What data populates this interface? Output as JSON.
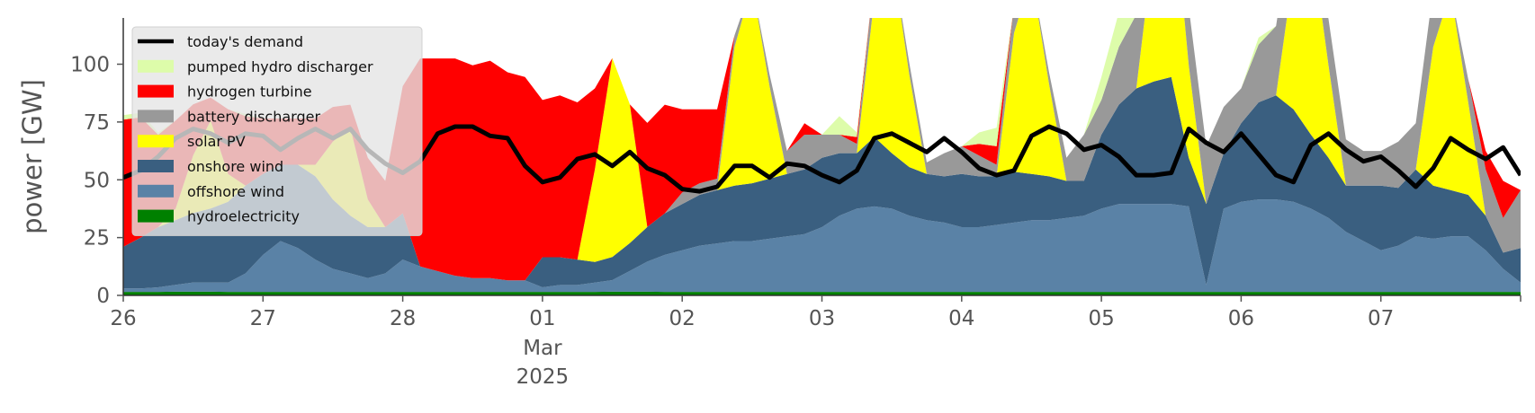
{
  "chart_data": {
    "type": "area",
    "ylabel": "power [GW]",
    "ylim": [
      0,
      120
    ],
    "yticks": [
      0,
      25,
      50,
      75,
      100
    ],
    "xlim": [
      "2025-02-26T00:00",
      "2025-03-08T00:00"
    ],
    "xticks": [
      {
        "x": "2025-02-26",
        "label": "26"
      },
      {
        "x": "2025-02-27",
        "label": "27"
      },
      {
        "x": "2025-02-28",
        "label": "28"
      },
      {
        "x": "2025-03-01",
        "label": "01",
        "sub": [
          "Mar",
          "2025"
        ]
      },
      {
        "x": "2025-03-02",
        "label": "02"
      },
      {
        "x": "2025-03-03",
        "label": "03"
      },
      {
        "x": "2025-03-04",
        "label": "04"
      },
      {
        "x": "2025-03-05",
        "label": "05"
      },
      {
        "x": "2025-03-06",
        "label": "06"
      },
      {
        "x": "2025-03-07",
        "label": "07"
      },
      {
        "x": "2025-03-08",
        "label": ""
      }
    ],
    "legend_position": "top-left",
    "grid": false,
    "x": [
      "2025-02-26T00:00",
      "2025-02-26T03:00",
      "2025-02-26T06:00",
      "2025-02-26T09:00",
      "2025-02-26T12:00",
      "2025-02-26T15:00",
      "2025-02-26T18:00",
      "2025-02-26T21:00",
      "2025-02-27T00:00",
      "2025-02-27T03:00",
      "2025-02-27T06:00",
      "2025-02-27T09:00",
      "2025-02-27T12:00",
      "2025-02-27T15:00",
      "2025-02-27T18:00",
      "2025-02-27T21:00",
      "2025-02-28T00:00",
      "2025-02-28T03:00",
      "2025-02-28T06:00",
      "2025-02-28T09:00",
      "2025-02-28T12:00",
      "2025-02-28T15:00",
      "2025-02-28T18:00",
      "2025-02-28T21:00",
      "2025-03-01T00:00",
      "2025-03-01T03:00",
      "2025-03-01T06:00",
      "2025-03-01T09:00",
      "2025-03-01T12:00",
      "2025-03-01T15:00",
      "2025-03-01T18:00",
      "2025-03-01T21:00",
      "2025-03-02T00:00",
      "2025-03-02T03:00",
      "2025-03-02T06:00",
      "2025-03-02T09:00",
      "2025-03-02T12:00",
      "2025-03-02T15:00",
      "2025-03-02T18:00",
      "2025-03-02T21:00",
      "2025-03-03T00:00",
      "2025-03-03T03:00",
      "2025-03-03T06:00",
      "2025-03-03T09:00",
      "2025-03-03T12:00",
      "2025-03-03T15:00",
      "2025-03-03T18:00",
      "2025-03-03T21:00",
      "2025-03-04T00:00",
      "2025-03-04T03:00",
      "2025-03-04T06:00",
      "2025-03-04T09:00",
      "2025-03-04T12:00",
      "2025-03-04T15:00",
      "2025-03-04T18:00",
      "2025-03-04T21:00",
      "2025-03-05T00:00",
      "2025-03-05T03:00",
      "2025-03-05T06:00",
      "2025-03-05T09:00",
      "2025-03-05T12:00",
      "2025-03-05T15:00",
      "2025-03-05T18:00",
      "2025-03-05T21:00",
      "2025-03-06T00:00",
      "2025-03-06T03:00",
      "2025-03-06T06:00",
      "2025-03-06T09:00",
      "2025-03-06T12:00",
      "2025-03-06T15:00",
      "2025-03-06T18:00",
      "2025-03-06T21:00",
      "2025-03-07T00:00",
      "2025-03-07T03:00",
      "2025-03-07T06:00",
      "2025-03-07T09:00",
      "2025-03-07T12:00",
      "2025-03-07T15:00",
      "2025-03-07T18:00",
      "2025-03-07T21:00",
      "2025-03-08T00:00"
    ],
    "stack_order": [
      "hydroelectricity",
      "offshore wind",
      "onshore wind",
      "solar PV",
      "battery discharger",
      "hydrogen turbine",
      "pumped hydro discharger"
    ],
    "series": [
      {
        "name": "hydroelectricity",
        "color": "#008000",
        "values": [
          1.5,
          1.5,
          1.5,
          1.6,
          1.6,
          1.6,
          1.5,
          1.5,
          1.5,
          1.5,
          1.5,
          1.5,
          1.5,
          1.5,
          1.5,
          1.5,
          1.5,
          1.5,
          1.5,
          1.5,
          1.5,
          1.5,
          1.5,
          1.5,
          1.5,
          1.5,
          1.5,
          1.5,
          1.6,
          1.6,
          1.6,
          1.5,
          1.5,
          1.5,
          1.5,
          1.5,
          1.5,
          1.5,
          1.5,
          1.5,
          1.5,
          1.5,
          1.5,
          1.5,
          1.5,
          1.5,
          1.5,
          1.5,
          1.5,
          1.5,
          1.5,
          1.5,
          1.5,
          1.5,
          1.5,
          1.5,
          1.5,
          1.5,
          1.5,
          1.5,
          1.5,
          1.5,
          1.5,
          1.5,
          1.5,
          1.5,
          1.5,
          1.5,
          1.5,
          1.5,
          1.5,
          1.5,
          1.5,
          1.5,
          1.5,
          1.5,
          1.5,
          1.5,
          1.5,
          1.5,
          1.5
        ]
      },
      {
        "name": "offshore wind",
        "color": "#5a82a6",
        "values": [
          1.5,
          1.5,
          2,
          3,
          4,
          4,
          4,
          8,
          16,
          22,
          19,
          14,
          10,
          8,
          6,
          8,
          14,
          11,
          9,
          7,
          6,
          6,
          5,
          5,
          2,
          3,
          3,
          4,
          5,
          9,
          13,
          16,
          18,
          20,
          21,
          22,
          22,
          23,
          24,
          25,
          28,
          33,
          36,
          37,
          36,
          33,
          31,
          30,
          28,
          28,
          29,
          30,
          31,
          31,
          32,
          33,
          36,
          38,
          38,
          38,
          38,
          37,
          3,
          36,
          39,
          40,
          40,
          39,
          36,
          32,
          26,
          22,
          18,
          20,
          24,
          23,
          24,
          24,
          18,
          10,
          4
        ]
      },
      {
        "name": "onshore wind",
        "color": "#3a5f80",
        "values": [
          18,
          22,
          26,
          28,
          30,
          32,
          35,
          38,
          35,
          33,
          36,
          36,
          30,
          25,
          22,
          20,
          20,
          0,
          0,
          0,
          0,
          0,
          0,
          0,
          13,
          12,
          11,
          9,
          10,
          12,
          15,
          18,
          20,
          22,
          23,
          24,
          25,
          26,
          27,
          28,
          30,
          27,
          24,
          30,
          24,
          21,
          20,
          20,
          23,
          22,
          21,
          22,
          20,
          19,
          16,
          15,
          32,
          43,
          50,
          53,
          55,
          21,
          35,
          24,
          34,
          42,
          45,
          40,
          32,
          26,
          20,
          24,
          28,
          25,
          29,
          23,
          20,
          18,
          15,
          7,
          15
        ]
      },
      {
        "name": "solar PV",
        "color": "#ffff00",
        "values": [
          0,
          0,
          0,
          5,
          25,
          38,
          12,
          0,
          0,
          0,
          0,
          5,
          25,
          38,
          12,
          0,
          0,
          0,
          0,
          0,
          0,
          0,
          0,
          0,
          0,
          0,
          0,
          40,
          86,
          60,
          0,
          0,
          0,
          0,
          0,
          60,
          86,
          40,
          0,
          0,
          0,
          0,
          0,
          60,
          86,
          40,
          0,
          0,
          0,
          0,
          0,
          60,
          86,
          40,
          0,
          0,
          0,
          0,
          0,
          60,
          86,
          40,
          0,
          0,
          0,
          0,
          0,
          60,
          86,
          40,
          0,
          0,
          0,
          0,
          0,
          60,
          86,
          40,
          0,
          0,
          0
        ]
      },
      {
        "name": "battery discharger",
        "color": "#999999",
        "values": [
          0,
          0,
          0,
          0,
          0,
          0,
          0,
          0,
          0,
          0,
          0,
          0,
          0,
          0,
          0,
          0,
          0,
          0,
          0,
          0,
          0,
          0,
          0,
          0,
          0,
          0,
          0,
          0,
          0,
          0,
          0,
          0,
          5,
          5,
          5,
          5,
          0,
          5,
          10,
          15,
          10,
          8,
          4,
          10,
          0,
          5,
          5,
          10,
          12,
          9,
          5,
          12,
          0,
          5,
          10,
          20,
          15,
          25,
          32,
          40,
          0,
          25,
          25,
          20,
          15,
          25,
          30,
          25,
          0,
          20,
          20,
          15,
          15,
          20,
          20,
          25,
          0,
          10,
          20,
          15,
          25
        ]
      },
      {
        "name": "hydrogen turbine",
        "color": "#ff0000",
        "values": [
          55,
          52,
          40,
          38,
          22,
          10,
          28,
          30,
          24,
          20,
          20,
          20,
          15,
          10,
          18,
          20,
          55,
          90,
          92,
          94,
          92,
          94,
          90,
          88,
          68,
          70,
          68,
          35,
          0,
          0,
          45,
          47,
          36,
          32,
          30,
          0,
          0,
          0,
          0,
          5,
          0,
          0,
          3,
          0,
          0,
          0,
          0,
          0,
          0,
          5,
          8,
          0,
          0,
          0,
          0,
          0,
          0,
          0,
          0,
          0,
          0,
          0,
          0,
          0,
          0,
          0,
          0,
          0,
          0,
          0,
          0,
          0,
          0,
          0,
          0,
          0,
          0,
          0,
          8,
          16,
          0
        ]
      },
      {
        "name": "pumped hydro discharger",
        "color": "#ddfcaa",
        "values": [
          2,
          2,
          1,
          0,
          0,
          0,
          0,
          1,
          0,
          0,
          0,
          0,
          0,
          0,
          0,
          0,
          0,
          0,
          0,
          0,
          0,
          0,
          0,
          0,
          0,
          0,
          0,
          0,
          0,
          0,
          0,
          0,
          0,
          0,
          0,
          0,
          0,
          0,
          0,
          0,
          0,
          8,
          2,
          0,
          0,
          0,
          0,
          0,
          0,
          5,
          8,
          0,
          0,
          0,
          0,
          0,
          10,
          15,
          8,
          5,
          0,
          0,
          0,
          0,
          0,
          3,
          0,
          0,
          0,
          0,
          0,
          0,
          0,
          0,
          0,
          0,
          0,
          0,
          0,
          0,
          0
        ]
      },
      {
        "name": "today's demand",
        "color": "#000000",
        "type": "line",
        "values": [
          51,
          54,
          60,
          68,
          72,
          70,
          66,
          70,
          69,
          63,
          68,
          72,
          68,
          72,
          63,
          57,
          53,
          58,
          70,
          73,
          73,
          69,
          68,
          56,
          49,
          51,
          59,
          61,
          56,
          62,
          55,
          52,
          46,
          45,
          47,
          56,
          56,
          51,
          57,
          56,
          52,
          49,
          54,
          68,
          70,
          66,
          62,
          68,
          62,
          55,
          52,
          54,
          69,
          73,
          70,
          63,
          65,
          60,
          52,
          52,
          53,
          72,
          66,
          62,
          70,
          61,
          52,
          49,
          65,
          70,
          63,
          58,
          60,
          54,
          47,
          55,
          68,
          63,
          59,
          64,
          52
        ]
      }
    ],
    "legend": [
      "today's demand",
      "pumped hydro discharger",
      "hydrogen turbine",
      "battery discharger",
      "solar PV",
      "onshore wind",
      "offshore wind",
      "hydroelectricity"
    ]
  }
}
